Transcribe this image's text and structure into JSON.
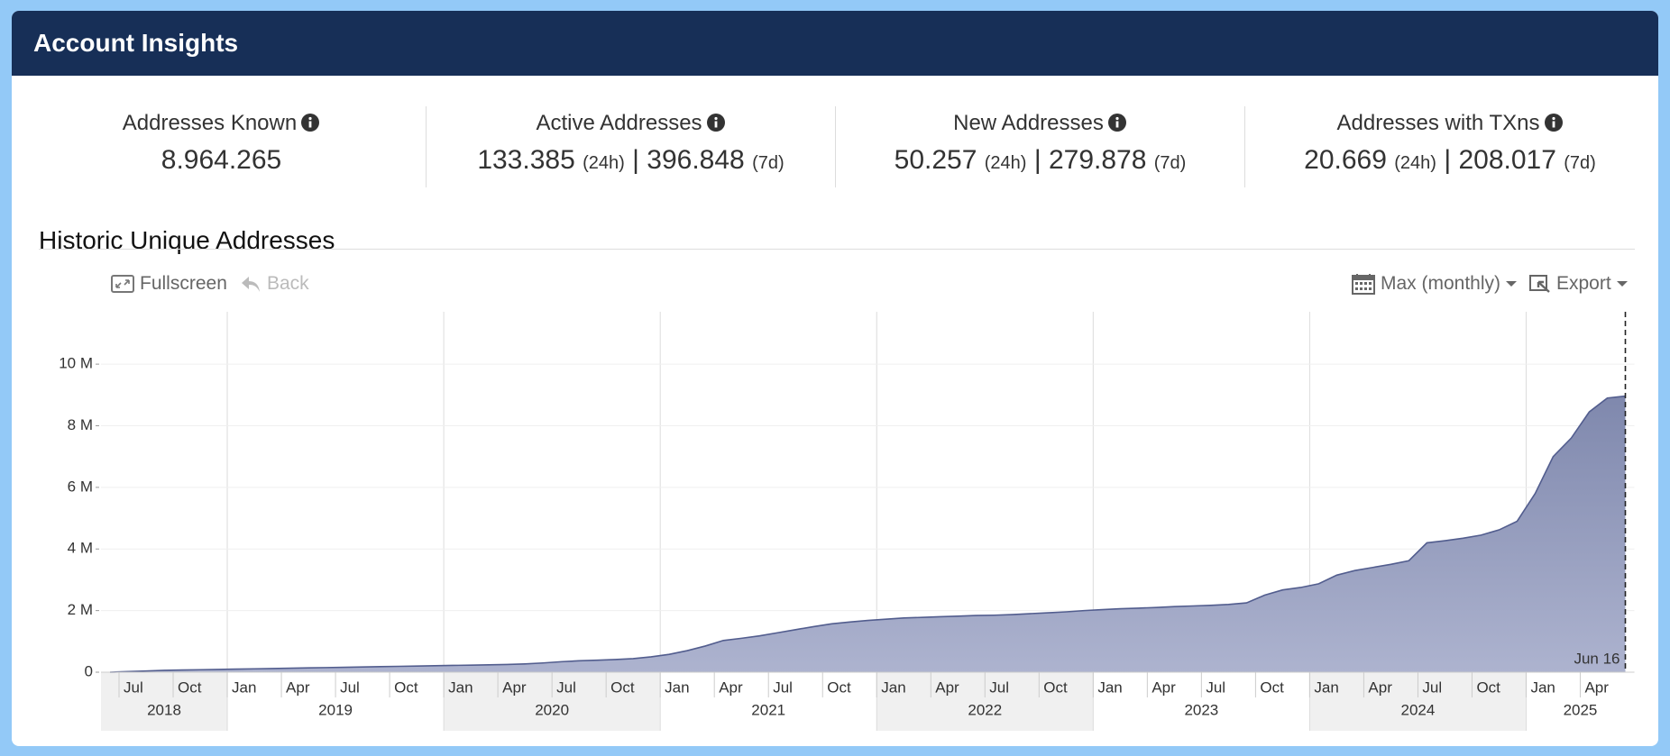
{
  "header": {
    "title": "Account Insights"
  },
  "separator": "|",
  "stats": [
    {
      "label": "Addresses Known",
      "value": "8.964.265"
    },
    {
      "label": "Active Addresses",
      "value_24h": "133.385",
      "unit_24h": "(24h)",
      "value_7d": "396.848",
      "unit_7d": "(7d)"
    },
    {
      "label": "New Addresses",
      "value_24h": "50.257",
      "unit_24h": "(24h)",
      "value_7d": "279.878",
      "unit_7d": "(7d)"
    },
    {
      "label": "Addresses with TXns",
      "value_24h": "20.669",
      "unit_24h": "(24h)",
      "value_7d": "208.017",
      "unit_7d": "(7d)"
    }
  ],
  "section_title": "Historic Unique Addresses",
  "toolbar": {
    "fullscreen": "Fullscreen",
    "back": "Back",
    "range": "Max (monthly)",
    "export": "Export"
  },
  "chart_data": {
    "type": "area",
    "x": [
      "2018-06",
      "2018-07",
      "2018-08",
      "2018-09",
      "2018-10",
      "2018-11",
      "2018-12",
      "2019-01",
      "2019-02",
      "2019-03",
      "2019-04",
      "2019-05",
      "2019-06",
      "2019-07",
      "2019-08",
      "2019-09",
      "2019-10",
      "2019-11",
      "2019-12",
      "2020-01",
      "2020-02",
      "2020-03",
      "2020-04",
      "2020-05",
      "2020-06",
      "2020-07",
      "2020-08",
      "2020-09",
      "2020-10",
      "2020-11",
      "2020-12",
      "2021-01",
      "2021-02",
      "2021-03",
      "2021-04",
      "2021-05",
      "2021-06",
      "2021-07",
      "2021-08",
      "2021-09",
      "2021-10",
      "2021-11",
      "2021-12",
      "2022-01",
      "2022-02",
      "2022-03",
      "2022-04",
      "2022-05",
      "2022-06",
      "2022-07",
      "2022-08",
      "2022-09",
      "2022-10",
      "2022-11",
      "2022-12",
      "2023-01",
      "2023-02",
      "2023-03",
      "2023-04",
      "2023-05",
      "2023-06",
      "2023-07",
      "2023-08",
      "2023-09",
      "2023-10",
      "2023-11",
      "2023-12",
      "2024-01",
      "2024-02",
      "2024-03",
      "2024-04",
      "2024-05",
      "2024-06",
      "2024-07",
      "2024-08",
      "2024-09",
      "2024-10",
      "2024-11",
      "2024-12",
      "2025-01",
      "2025-02",
      "2025-03",
      "2025-04",
      "2025-05",
      "2025-06"
    ],
    "series": [
      {
        "color": "#525d8e",
        "fill_top": "#7f88ad",
        "fill_bottom": "#adb3cf",
        "values": [
          0,
          20000,
          40000,
          60000,
          70000,
          80000,
          90000,
          100000,
          110000,
          120000,
          130000,
          140000,
          150000,
          160000,
          170000,
          180000,
          190000,
          200000,
          210000,
          220000,
          230000,
          240000,
          250000,
          270000,
          300000,
          340000,
          370000,
          390000,
          410000,
          440000,
          500000,
          580000,
          700000,
          850000,
          1030000,
          1100000,
          1180000,
          1280000,
          1380000,
          1480000,
          1570000,
          1630000,
          1680000,
          1720000,
          1760000,
          1780000,
          1800000,
          1820000,
          1840000,
          1850000,
          1870000,
          1900000,
          1930000,
          1960000,
          2000000,
          2030000,
          2060000,
          2080000,
          2100000,
          2130000,
          2150000,
          2170000,
          2200000,
          2250000,
          2500000,
          2670000,
          2750000,
          2870000,
          3150000,
          3300000,
          3400000,
          3500000,
          3620000,
          4200000,
          4270000,
          4350000,
          4450000,
          4620000,
          4900000,
          5800000,
          7000000,
          7600000,
          8450000,
          8900000,
          8964265
        ]
      }
    ],
    "xlim": [
      "2018-06",
      "2025-07"
    ],
    "xticks": [
      {
        "value": "2018-07",
        "label": "Jul"
      },
      {
        "value": "2018-10",
        "label": "Oct"
      },
      {
        "value": "2019-01",
        "label": "Jan"
      },
      {
        "value": "2019-04",
        "label": "Apr"
      },
      {
        "value": "2019-07",
        "label": "Jul"
      },
      {
        "value": "2019-10",
        "label": "Oct"
      },
      {
        "value": "2020-01",
        "label": "Jan"
      },
      {
        "value": "2020-04",
        "label": "Apr"
      },
      {
        "value": "2020-07",
        "label": "Jul"
      },
      {
        "value": "2020-10",
        "label": "Oct"
      },
      {
        "value": "2021-01",
        "label": "Jan"
      },
      {
        "value": "2021-04",
        "label": "Apr"
      },
      {
        "value": "2021-07",
        "label": "Jul"
      },
      {
        "value": "2021-10",
        "label": "Oct"
      },
      {
        "value": "2022-01",
        "label": "Jan"
      },
      {
        "value": "2022-04",
        "label": "Apr"
      },
      {
        "value": "2022-07",
        "label": "Jul"
      },
      {
        "value": "2022-10",
        "label": "Oct"
      },
      {
        "value": "2023-01",
        "label": "Jan"
      },
      {
        "value": "2023-04",
        "label": "Apr"
      },
      {
        "value": "2023-07",
        "label": "Jul"
      },
      {
        "value": "2023-10",
        "label": "Oct"
      },
      {
        "value": "2024-01",
        "label": "Jan"
      },
      {
        "value": "2024-04",
        "label": "Apr"
      },
      {
        "value": "2024-07",
        "label": "Jul"
      },
      {
        "value": "2024-10",
        "label": "Oct"
      },
      {
        "value": "2025-01",
        "label": "Jan"
      },
      {
        "value": "2025-04",
        "label": "Apr"
      }
    ],
    "years": [
      "2018",
      "2019",
      "2020",
      "2021",
      "2022",
      "2023",
      "2024",
      "2025"
    ],
    "ylim": [
      0,
      11700000
    ],
    "yticks": [
      0,
      {
        "value": 2000000,
        "label": "2 M"
      },
      {
        "value": 4000000,
        "label": "4 M"
      },
      {
        "value": 6000000,
        "label": "6 M"
      },
      {
        "value": 8000000,
        "label": "8 M"
      },
      {
        "value": 10000000,
        "label": "10 M"
      }
    ],
    "grid": true,
    "annotation": {
      "x": "2025-06-16",
      "label": "Jun 16"
    }
  }
}
